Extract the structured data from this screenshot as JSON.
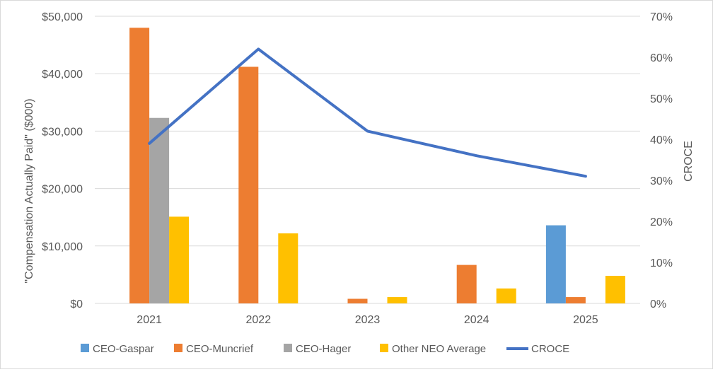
{
  "chart_data": {
    "type": "bar",
    "categories": [
      "2021",
      "2022",
      "2023",
      "2024",
      "2025"
    ],
    "y_left": {
      "label": "\"Compensation Actually Paid\" ($000)",
      "range": [
        0,
        50000
      ],
      "ticks": [
        "$0",
        "$10,000",
        "$20,000",
        "$30,000",
        "$40,000",
        "$50,000"
      ]
    },
    "y_right": {
      "label": "CROCE",
      "range": [
        0,
        70
      ],
      "ticks": [
        "0%",
        "10%",
        "20%",
        "30%",
        "40%",
        "50%",
        "60%",
        "70%"
      ]
    },
    "series": [
      {
        "name": "CEO-Gaspar",
        "type": "bar",
        "axis": "left",
        "color": "#5b9bd5",
        "values": [
          null,
          null,
          null,
          null,
          13600
        ]
      },
      {
        "name": "CEO-Muncrief",
        "type": "bar",
        "axis": "left",
        "color": "#ed7d31",
        "values": [
          48000,
          41200,
          800,
          6700,
          1100
        ]
      },
      {
        "name": "CEO-Hager",
        "type": "bar",
        "axis": "left",
        "color": "#a5a5a5",
        "values": [
          32300,
          null,
          null,
          null,
          null
        ]
      },
      {
        "name": "Other NEO Average",
        "type": "bar",
        "axis": "left",
        "color": "#ffc000",
        "values": [
          15100,
          12200,
          1100,
          2600,
          4800
        ]
      },
      {
        "name": "CROCE",
        "type": "line",
        "axis": "right",
        "color": "#4472c4",
        "values": [
          39,
          62,
          42,
          36,
          31
        ]
      }
    ],
    "grid": "horizontal",
    "legend": "bottom"
  }
}
